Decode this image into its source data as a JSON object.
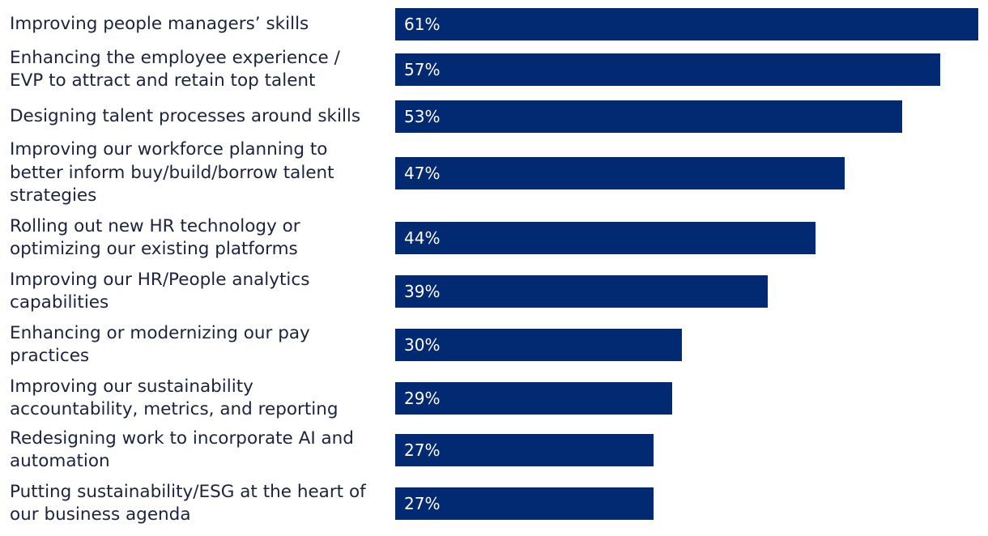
{
  "colors": {
    "bar": "#012A72",
    "bar_text": "#FFFFFF",
    "label_text": "#1A2340",
    "background": "#FFFFFF"
  },
  "chart_data": {
    "type": "bar",
    "orientation": "horizontal",
    "title": "",
    "xlabel": "",
    "ylabel": "",
    "value_suffix": "%",
    "xlim": [
      0,
      61
    ],
    "grid": false,
    "legend": "none",
    "categories": [
      "Improving people managers’ skills",
      "Enhancing the employee experience /\nEVP to attract and retain top talent",
      "Designing talent processes around skills",
      "Improving our workforce planning to\nbetter inform buy/build/borrow talent\nstrategies",
      "Rolling out new HR technology or\noptimizing our existing platforms",
      "Improving our HR/People analytics\ncapabilities",
      "Enhancing or modernizing our pay\npractices",
      "Improving our sustainability\naccountability, metrics, and reporting",
      "Redesigning work to incorporate AI and\nautomation",
      "Putting sustainability/ESG at the heart of\nour business agenda"
    ],
    "values": [
      61,
      57,
      53,
      47,
      44,
      39,
      30,
      29,
      27,
      27
    ],
    "data_labels": [
      "61%",
      "57%",
      "53%",
      "47%",
      "44%",
      "39%",
      "30%",
      "29%",
      "27%",
      "27%"
    ]
  }
}
